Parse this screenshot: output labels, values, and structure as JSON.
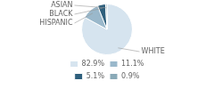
{
  "chart_data": {
    "type": "pie",
    "categories": [
      "WHITE",
      "HISPANIC",
      "BLACK",
      "ASIAN"
    ],
    "values": [
      82.9,
      11.1,
      5.1,
      0.9
    ],
    "value_labels": [
      "82.9%",
      "11.1%",
      "5.1%",
      "0.9%"
    ],
    "colors": [
      "#d6e4ef",
      "#9ab8cb",
      "#2e5f7c",
      "#8aaab8"
    ],
    "legend": "bottom"
  }
}
